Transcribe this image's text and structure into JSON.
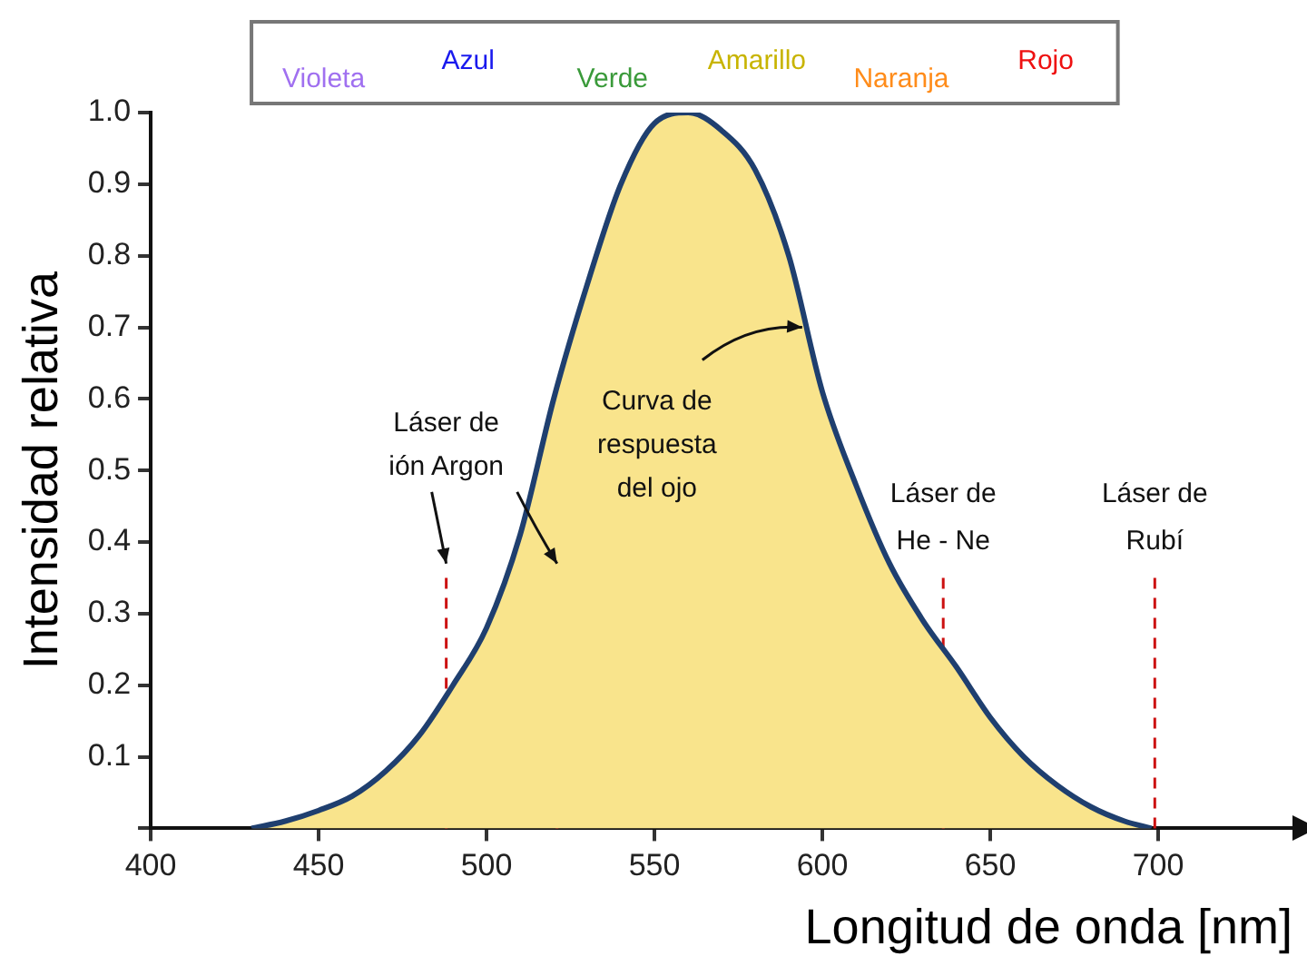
{
  "chart_data": {
    "type": "area",
    "xlabel": "Longitud de onda [nm]",
    "ylabel": "Intensidad relativa",
    "x": [
      430,
      440,
      450,
      460,
      470,
      480,
      490,
      500,
      510,
      520,
      530,
      540,
      550,
      560,
      570,
      580,
      590,
      600,
      610,
      620,
      630,
      640,
      650,
      660,
      670,
      680,
      690,
      698
    ],
    "series": [
      {
        "color": "#f9e48c",
        "values": [
          0,
          0.01,
          0.025,
          0.045,
          0.08,
          0.13,
          0.2,
          0.28,
          0.41,
          0.6,
          0.76,
          0.9,
          0.985,
          1.0,
          0.975,
          0.92,
          0.8,
          0.61,
          0.48,
          0.37,
          0.29,
          0.225,
          0.155,
          0.1,
          0.06,
          0.03,
          0.01,
          0
        ]
      }
    ],
    "xlim": [
      400,
      740
    ],
    "xticks": [
      400,
      450,
      500,
      550,
      600,
      650,
      700
    ],
    "ylim": [
      0,
      1
    ],
    "yticks": [
      {
        "value": 0,
        "label": null
      },
      0.1,
      0.2,
      0.3,
      0.4,
      0.5,
      0.6,
      0.7,
      0.8,
      0.9,
      {
        "value": 1,
        "label": "1.0"
      }
    ],
    "grid": false,
    "legend": false,
    "marker": "none",
    "line_style": "solid",
    "ref_lines": [
      {
        "axis": "x",
        "value": 488,
        "label": "Láser de ión Argon",
        "color": "#cc1111",
        "line_style": "dashed"
      },
      {
        "axis": "x",
        "value": 521,
        "color": "#cc1111",
        "line_style": "dashed"
      },
      {
        "axis": "x",
        "value": 636,
        "label": "Láser de He - Ne",
        "color": "#cc1111",
        "line_style": "dashed"
      },
      {
        "axis": "x",
        "value": 699,
        "label": "Láser de Rubí",
        "color": "#cc1111",
        "line_style": "dashed"
      }
    ],
    "annotations": [
      "Violeta",
      "Azul",
      "Verde",
      "Amarillo",
      "Naranja",
      "Rojo",
      {
        "text": "Curva de respuesta del ojo",
        "x": 594,
        "y": 0.7
      }
    ]
  }
}
